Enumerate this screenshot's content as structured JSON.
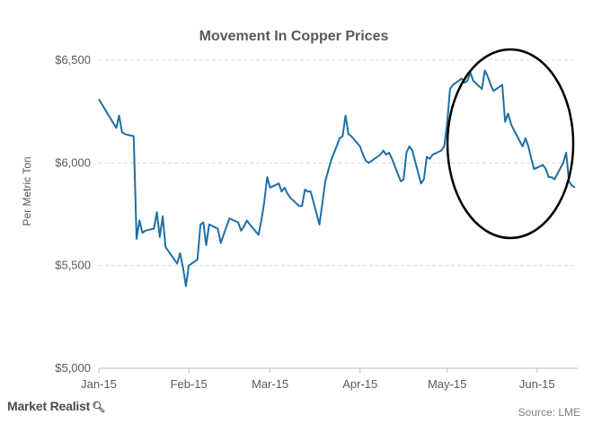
{
  "chart_data": {
    "type": "line",
    "title": "Movement In Copper Prices",
    "ylabel": "Per Metric Ton",
    "xlabel": "",
    "ylim": [
      5000,
      6500
    ],
    "yticks": [
      5000,
      5500,
      6000,
      6500
    ],
    "ytick_labels": [
      "$5,000",
      "$5,500",
      "$6,000",
      "$6,500"
    ],
    "x_tick_labels": [
      "Jan-15",
      "Feb-15",
      "Mar-15",
      "Apr-15",
      "May-15",
      "Jun-15"
    ],
    "x_tick_days": [
      0,
      31,
      59,
      90,
      120,
      151
    ],
    "grid": true,
    "series": [
      {
        "color": "#1f6fa3",
        "x": [
          0,
          6,
          7,
          8,
          9,
          12,
          13,
          14,
          15,
          16,
          19,
          20,
          21,
          22,
          23,
          26,
          27,
          28,
          29,
          30,
          31,
          34,
          35,
          36,
          37,
          38,
          41,
          42,
          43,
          44,
          45,
          48,
          49,
          50,
          51,
          52,
          55,
          56,
          57,
          58,
          59,
          62,
          63,
          64,
          65,
          66,
          69,
          70,
          71,
          72,
          73,
          76,
          77,
          78,
          79,
          80,
          83,
          84,
          85,
          86,
          87,
          90,
          91,
          92,
          93,
          94,
          97,
          98,
          99,
          100,
          101,
          104,
          105,
          106,
          107,
          108,
          111,
          112,
          113,
          114,
          115,
          118,
          119,
          120,
          121,
          122,
          125,
          126,
          127,
          128,
          129,
          132,
          133,
          134,
          135,
          136,
          139,
          140,
          141,
          142,
          143,
          146,
          147,
          148,
          149,
          150,
          153,
          154,
          155,
          156,
          157,
          160,
          161,
          162,
          163,
          164
        ],
        "y": [
          6310,
          6170,
          6230,
          6150,
          6140,
          6130,
          5630,
          5720,
          5660,
          5670,
          5680,
          5760,
          5640,
          5740,
          5590,
          5530,
          5510,
          5560,
          5490,
          5400,
          5500,
          5530,
          5700,
          5710,
          5600,
          5700,
          5680,
          5610,
          5650,
          5690,
          5730,
          5710,
          5670,
          5690,
          5720,
          5700,
          5650,
          5720,
          5810,
          5930,
          5880,
          5900,
          5860,
          5880,
          5850,
          5830,
          5790,
          5790,
          5870,
          5860,
          5860,
          5700,
          5800,
          5910,
          5960,
          6010,
          6120,
          6130,
          6230,
          6140,
          6130,
          6080,
          6040,
          6010,
          6000,
          6010,
          6040,
          6060,
          6040,
          6050,
          6020,
          5910,
          5920,
          6050,
          6080,
          6060,
          5900,
          5920,
          6030,
          6020,
          6040,
          6060,
          6080,
          6190,
          6360,
          6380,
          6410,
          6390,
          6400,
          6440,
          6400,
          6360,
          6450,
          6420,
          6380,
          6350,
          6380,
          6200,
          6240,
          6190,
          6160,
          6080,
          6120,
          6080,
          6020,
          5970,
          5990,
          5970,
          5930,
          5930,
          5920,
          6000,
          6050,
          5910,
          5890,
          5880
        ]
      }
    ]
  },
  "brand": {
    "name": "Market Realist",
    "icon": "magnifier-icon"
  },
  "source": "Source: LME",
  "annotation": {
    "shape": "ellipse",
    "color": "#000000"
  }
}
